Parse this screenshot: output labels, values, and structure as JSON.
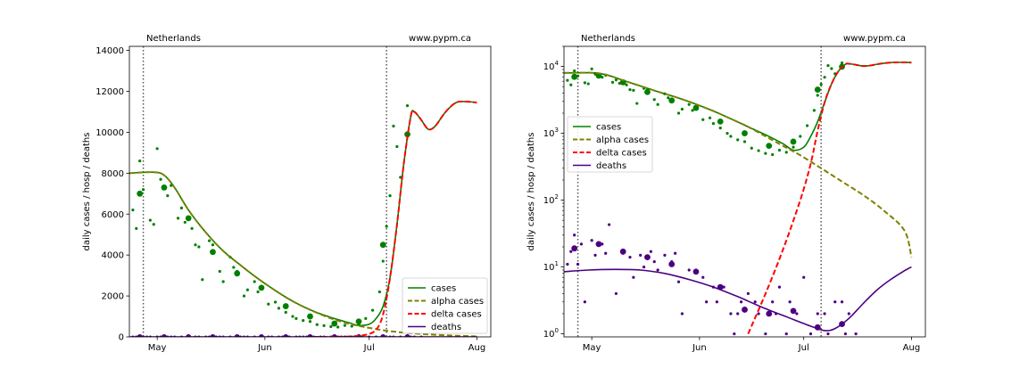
{
  "colors": {
    "cases": "#008000",
    "alpha": "#808000",
    "delta": "#ff0000",
    "deaths": "#4b0082",
    "vline": "#555555"
  },
  "chart_data": [
    {
      "type": "line",
      "scale": "linear",
      "title_left": "Netherlands",
      "title_right": "www.pypm.ca",
      "ylabel": "daily cases / hosp / deaths",
      "xlim": [
        "2021-04-23",
        "2021-08-05"
      ],
      "ylim": [
        0,
        14200
      ],
      "yticks": [
        0,
        2000,
        4000,
        6000,
        8000,
        10000,
        12000,
        14000
      ],
      "xticks": [
        {
          "date": "2021-05-01",
          "label": "May"
        },
        {
          "date": "2021-06-01",
          "label": "Jun"
        },
        {
          "date": "2021-07-01",
          "label": "Jul"
        },
        {
          "date": "2021-08-01",
          "label": "Aug"
        }
      ],
      "vlines": [
        "2021-04-27",
        "2021-07-06"
      ],
      "legend": {
        "position": "lower-right",
        "entries": [
          {
            "label": "cases",
            "series": "cases",
            "style": "solid"
          },
          {
            "label": "alpha cases",
            "series": "alpha",
            "style": "dashed"
          },
          {
            "label": "delta cases",
            "series": "delta",
            "style": "dashed"
          },
          {
            "label": "deaths",
            "series": "deaths",
            "style": "solid"
          }
        ]
      }
    },
    {
      "type": "line",
      "scale": "log",
      "title_left": "Netherlands",
      "title_right": "www.pypm.ca",
      "ylabel": "daily cases / hosp / deaths",
      "xlim": [
        "2021-04-23",
        "2021-08-05"
      ],
      "ylim": [
        0.9,
        20000
      ],
      "yticks": [
        {
          "value": 1,
          "base": "10",
          "exp": "0"
        },
        {
          "value": 10,
          "base": "10",
          "exp": "1"
        },
        {
          "value": 100,
          "base": "10",
          "exp": "2"
        },
        {
          "value": 1000,
          "base": "10",
          "exp": "3"
        },
        {
          "value": 10000,
          "base": "10",
          "exp": "4"
        }
      ],
      "xticks": [
        {
          "date": "2021-05-01",
          "label": "May"
        },
        {
          "date": "2021-06-01",
          "label": "Jun"
        },
        {
          "date": "2021-07-01",
          "label": "Jul"
        },
        {
          "date": "2021-08-01",
          "label": "Aug"
        }
      ],
      "vlines": [
        "2021-04-27",
        "2021-07-06"
      ],
      "legend": {
        "position": "center-left",
        "entries": [
          {
            "label": "cases",
            "series": "cases",
            "style": "solid"
          },
          {
            "label": "alpha cases",
            "series": "alpha",
            "style": "dashed"
          },
          {
            "label": "delta cases",
            "series": "delta",
            "style": "dashed"
          },
          {
            "label": "deaths",
            "series": "deaths",
            "style": "solid"
          }
        ]
      }
    }
  ],
  "series_data": {
    "cases": [
      [
        "2021-04-23",
        8000
      ],
      [
        "2021-04-30",
        8050
      ],
      [
        "2021-05-03",
        7900
      ],
      [
        "2021-05-06",
        7300
      ],
      [
        "2021-05-10",
        6200
      ],
      [
        "2021-05-15",
        5100
      ],
      [
        "2021-05-20",
        4200
      ],
      [
        "2021-05-25",
        3500
      ],
      [
        "2021-05-30",
        2850
      ],
      [
        "2021-06-05",
        2150
      ],
      [
        "2021-06-10",
        1650
      ],
      [
        "2021-06-15",
        1250
      ],
      [
        "2021-06-20",
        950
      ],
      [
        "2021-06-25",
        700
      ],
      [
        "2021-06-28",
        560
      ],
      [
        "2021-07-01",
        620
      ],
      [
        "2021-07-03",
        900
      ],
      [
        "2021-07-05",
        1500
      ],
      [
        "2021-07-07",
        2900
      ],
      [
        "2021-07-09",
        5500
      ],
      [
        "2021-07-11",
        8500
      ],
      [
        "2021-07-13",
        10800
      ],
      [
        "2021-07-14",
        11000
      ],
      [
        "2021-07-16",
        10600
      ],
      [
        "2021-07-18",
        10150
      ],
      [
        "2021-07-20",
        10300
      ],
      [
        "2021-07-23",
        11000
      ],
      [
        "2021-07-26",
        11450
      ],
      [
        "2021-07-29",
        11500
      ],
      [
        "2021-08-01",
        11450
      ]
    ],
    "alpha": [
      [
        "2021-04-23",
        8000
      ],
      [
        "2021-04-30",
        8050
      ],
      [
        "2021-05-03",
        7900
      ],
      [
        "2021-05-06",
        7300
      ],
      [
        "2021-05-10",
        6200
      ],
      [
        "2021-05-15",
        5100
      ],
      [
        "2021-05-20",
        4200
      ],
      [
        "2021-05-25",
        3500
      ],
      [
        "2021-05-30",
        2850
      ],
      [
        "2021-06-05",
        2150
      ],
      [
        "2021-06-10",
        1650
      ],
      [
        "2021-06-15",
        1250
      ],
      [
        "2021-06-20",
        900
      ],
      [
        "2021-06-25",
        650
      ],
      [
        "2021-06-30",
        470
      ],
      [
        "2021-07-06",
        300
      ],
      [
        "2021-07-12",
        190
      ],
      [
        "2021-07-18",
        120
      ],
      [
        "2021-07-24",
        70
      ],
      [
        "2021-07-30",
        35
      ],
      [
        "2021-08-01",
        14
      ]
    ],
    "delta": [
      [
        "2021-06-15",
        1
      ],
      [
        "2021-06-20",
        4
      ],
      [
        "2021-06-25",
        18
      ],
      [
        "2021-06-30",
        100
      ],
      [
        "2021-07-03",
        350
      ],
      [
        "2021-07-05",
        1100
      ],
      [
        "2021-07-07",
        2900
      ],
      [
        "2021-07-09",
        5500
      ],
      [
        "2021-07-11",
        8500
      ],
      [
        "2021-07-13",
        10800
      ],
      [
        "2021-07-14",
        11000
      ],
      [
        "2021-07-16",
        10600
      ],
      [
        "2021-07-18",
        10150
      ],
      [
        "2021-07-20",
        10300
      ],
      [
        "2021-07-23",
        11000
      ],
      [
        "2021-07-26",
        11450
      ],
      [
        "2021-07-29",
        11500
      ],
      [
        "2021-08-01",
        11450
      ]
    ],
    "deaths": [
      [
        "2021-04-23",
        8.5
      ],
      [
        "2021-04-30",
        9
      ],
      [
        "2021-05-07",
        9.2
      ],
      [
        "2021-05-15",
        9.0
      ],
      [
        "2021-05-22",
        8
      ],
      [
        "2021-05-29",
        6.5
      ],
      [
        "2021-06-05",
        5
      ],
      [
        "2021-06-12",
        3.6
      ],
      [
        "2021-06-19",
        2.5
      ],
      [
        "2021-06-26",
        1.8
      ],
      [
        "2021-07-03",
        1.3
      ],
      [
        "2021-07-07",
        1.12
      ],
      [
        "2021-07-10",
        1.2
      ],
      [
        "2021-07-14",
        1.7
      ],
      [
        "2021-07-18",
        2.8
      ],
      [
        "2021-07-22",
        4.5
      ],
      [
        "2021-07-26",
        6.5
      ],
      [
        "2021-07-30",
        8.8
      ],
      [
        "2021-08-01",
        10
      ]
    ],
    "case_points_small": [
      [
        "2021-04-24",
        6200
      ],
      [
        "2021-04-25",
        5300
      ],
      [
        "2021-04-26",
        8600
      ],
      [
        "2021-04-27",
        7200
      ],
      [
        "2021-04-29",
        5700
      ],
      [
        "2021-04-30",
        5500
      ],
      [
        "2021-05-01",
        9200
      ],
      [
        "2021-05-02",
        7700
      ],
      [
        "2021-05-04",
        6900
      ],
      [
        "2021-05-05",
        7400
      ],
      [
        "2021-05-07",
        5800
      ],
      [
        "2021-05-08",
        6300
      ],
      [
        "2021-05-09",
        5600
      ],
      [
        "2021-05-11",
        5300
      ],
      [
        "2021-05-12",
        4500
      ],
      [
        "2021-05-13",
        4400
      ],
      [
        "2021-05-14",
        2800
      ],
      [
        "2021-05-16",
        4700
      ],
      [
        "2021-05-17",
        4500
      ],
      [
        "2021-05-19",
        3200
      ],
      [
        "2021-05-20",
        2700
      ],
      [
        "2021-05-22",
        3900
      ],
      [
        "2021-05-23",
        3400
      ],
      [
        "2021-05-24",
        3200
      ],
      [
        "2021-05-26",
        2000
      ],
      [
        "2021-05-27",
        2300
      ],
      [
        "2021-05-29",
        2700
      ],
      [
        "2021-05-30",
        2200
      ],
      [
        "2021-06-02",
        1600
      ],
      [
        "2021-06-04",
        1700
      ],
      [
        "2021-06-05",
        1400
      ],
      [
        "2021-06-07",
        1200
      ],
      [
        "2021-06-09",
        1000
      ],
      [
        "2021-06-10",
        900
      ],
      [
        "2021-06-12",
        800
      ],
      [
        "2021-06-14",
        750
      ],
      [
        "2021-06-16",
        600
      ],
      [
        "2021-06-18",
        550
      ],
      [
        "2021-06-20",
        500
      ],
      [
        "2021-06-22",
        480
      ],
      [
        "2021-06-24",
        560
      ],
      [
        "2021-06-26",
        520
      ],
      [
        "2021-06-28",
        620
      ],
      [
        "2021-06-30",
        900
      ],
      [
        "2021-07-02",
        1300
      ],
      [
        "2021-07-04",
        2200
      ],
      [
        "2021-07-05",
        3700
      ],
      [
        "2021-07-06",
        5400
      ],
      [
        "2021-07-07",
        6900
      ],
      [
        "2021-07-08",
        10300
      ],
      [
        "2021-07-09",
        9300
      ],
      [
        "2021-07-10",
        7800
      ],
      [
        "2021-07-12",
        11300
      ]
    ],
    "case_points_large": [
      [
        "2021-04-26",
        7000
      ],
      [
        "2021-05-03",
        7300
      ],
      [
        "2021-05-10",
        5800
      ],
      [
        "2021-05-17",
        4150
      ],
      [
        "2021-05-24",
        3100
      ],
      [
        "2021-05-31",
        2400
      ],
      [
        "2021-06-07",
        1500
      ],
      [
        "2021-06-14",
        1000
      ],
      [
        "2021-06-21",
        650
      ],
      [
        "2021-06-28",
        750
      ],
      [
        "2021-07-05",
        4500
      ],
      [
        "2021-07-12",
        9900
      ]
    ],
    "death_points_small": [
      [
        "2021-04-24",
        11
      ],
      [
        "2021-04-25",
        17
      ],
      [
        "2021-04-26",
        30
      ],
      [
        "2021-04-27",
        11
      ],
      [
        "2021-04-28",
        22
      ],
      [
        "2021-04-29",
        3
      ],
      [
        "2021-05-01",
        25
      ],
      [
        "2021-05-02",
        15
      ],
      [
        "2021-05-04",
        22
      ],
      [
        "2021-05-05",
        16
      ],
      [
        "2021-05-06",
        43
      ],
      [
        "2021-05-08",
        4
      ],
      [
        "2021-05-10",
        16
      ],
      [
        "2021-05-12",
        14
      ],
      [
        "2021-05-13",
        7
      ],
      [
        "2021-05-15",
        15
      ],
      [
        "2021-05-16",
        10
      ],
      [
        "2021-05-18",
        17
      ],
      [
        "2021-05-19",
        12
      ],
      [
        "2021-05-20",
        9
      ],
      [
        "2021-05-22",
        15
      ],
      [
        "2021-05-24",
        12
      ],
      [
        "2021-05-25",
        16
      ],
      [
        "2021-05-26",
        6
      ],
      [
        "2021-05-27",
        2
      ],
      [
        "2021-05-29",
        9
      ],
      [
        "2021-05-31",
        9
      ],
      [
        "2021-06-02",
        7
      ],
      [
        "2021-06-03",
        3
      ],
      [
        "2021-06-05",
        5
      ],
      [
        "2021-06-06",
        3
      ],
      [
        "2021-06-08",
        5
      ],
      [
        "2021-06-10",
        2
      ],
      [
        "2021-06-11",
        1
      ],
      [
        "2021-06-12",
        2
      ],
      [
        "2021-06-13",
        3
      ],
      [
        "2021-06-15",
        4
      ],
      [
        "2021-06-17",
        3
      ],
      [
        "2021-06-18",
        2
      ],
      [
        "2021-06-20",
        1
      ],
      [
        "2021-06-22",
        3
      ],
      [
        "2021-06-23",
        2
      ],
      [
        "2021-06-24",
        5
      ],
      [
        "2021-06-26",
        1
      ],
      [
        "2021-06-27",
        3
      ],
      [
        "2021-06-29",
        2
      ],
      [
        "2021-07-01",
        7
      ],
      [
        "2021-07-03",
        1
      ],
      [
        "2021-07-05",
        2
      ],
      [
        "2021-07-07",
        2
      ],
      [
        "2021-07-08",
        1
      ],
      [
        "2021-07-10",
        3
      ],
      [
        "2021-07-12",
        3
      ],
      [
        "2021-07-13",
        1
      ],
      [
        "2021-07-14",
        2
      ],
      [
        "2021-07-16",
        1
      ]
    ],
    "death_points_large": [
      [
        "2021-04-26",
        19
      ],
      [
        "2021-05-03",
        22
      ],
      [
        "2021-05-10",
        17
      ],
      [
        "2021-05-17",
        14
      ],
      [
        "2021-05-24",
        11
      ],
      [
        "2021-05-31",
        8.5
      ],
      [
        "2021-06-07",
        5
      ],
      [
        "2021-06-14",
        2.3
      ],
      [
        "2021-06-21",
        2
      ],
      [
        "2021-06-28",
        2.2
      ],
      [
        "2021-07-05",
        1.25
      ],
      [
        "2021-07-12",
        1.4
      ]
    ]
  }
}
